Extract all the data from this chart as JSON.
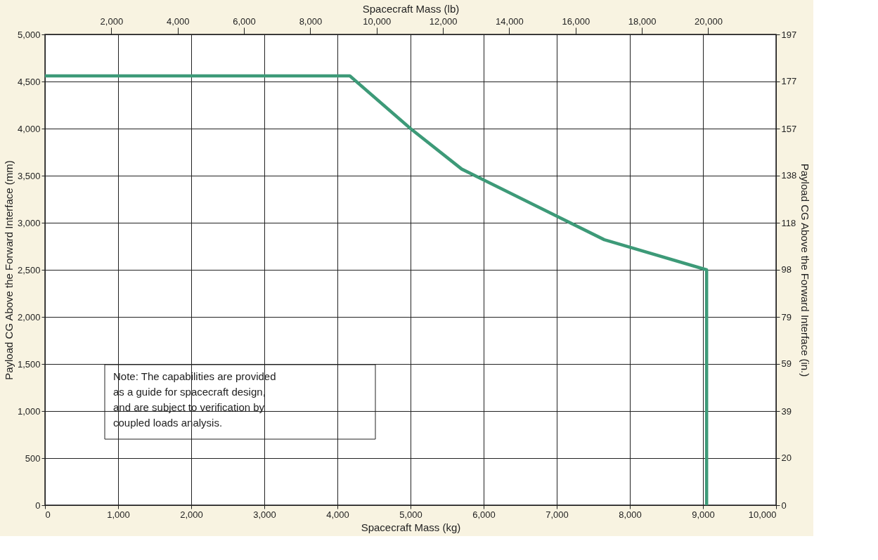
{
  "chart_data": {
    "type": "line",
    "xlabel": "Spacecraft Mass (kg)",
    "ylabel": "Payload CG Above the Forward Interface (mm)",
    "y2label": "Payload CG Above the Forward Interface (in.)",
    "x2label": "Spacecraft Mass (lb)",
    "series": [
      {
        "color": "#3d9a78",
        "x": [
          0,
          4170,
          5000,
          5700,
          7650,
          9050,
          9050
        ],
        "values": [
          4560,
          4560,
          4000,
          3570,
          2820,
          2500,
          0
        ]
      }
    ],
    "xlim": [
      0,
      10000
    ],
    "xticks": [
      0,
      {
        "value": 1000,
        "label": "1,000"
      },
      {
        "value": 2000,
        "label": "2,000"
      },
      {
        "value": 3000,
        "label": "3,000"
      },
      {
        "value": 4000,
        "label": "4,000"
      },
      {
        "value": 5000,
        "label": "5,000"
      },
      {
        "value": 6000,
        "label": "6,000"
      },
      {
        "value": 7000,
        "label": "7,000"
      },
      {
        "value": 8000,
        "label": "8,000"
      },
      {
        "value": 9000,
        "label": "9,000"
      },
      {
        "value": 10000,
        "label": "10,000"
      }
    ],
    "ylim": [
      0,
      5000
    ],
    "yticks": [
      0,
      500,
      {
        "value": 1000,
        "label": "1,000"
      },
      {
        "value": 1500,
        "label": "1,500"
      },
      {
        "value": 2000,
        "label": "2,000"
      },
      {
        "value": 2500,
        "label": "2,500"
      },
      {
        "value": 3000,
        "label": "3,000"
      },
      {
        "value": 3500,
        "label": "3,500"
      },
      {
        "value": 4000,
        "label": "4,000"
      },
      {
        "value": 4500,
        "label": "4,500"
      },
      {
        "value": 5000,
        "label": "5,000"
      }
    ],
    "x2lim": [
      0,
      22046
    ],
    "x2ticks": [
      {
        "value": 2000,
        "label": "2,000"
      },
      {
        "value": 4000,
        "label": "4,000"
      },
      {
        "value": 6000,
        "label": "6,000"
      },
      {
        "value": 8000,
        "label": "8,000"
      },
      {
        "value": 10000,
        "label": "10,000"
      },
      {
        "value": 12000,
        "label": "12,000"
      },
      {
        "value": 14000,
        "label": "14,000"
      },
      {
        "value": 16000,
        "label": "16,000"
      },
      {
        "value": 18000,
        "label": "18,000"
      },
      {
        "value": 20000,
        "label": "20,000"
      }
    ],
    "y2lim": [
      0,
      196.85
    ],
    "y2ticks": [
      0,
      {
        "value": 19.69,
        "label": "20"
      },
      {
        "value": 39.37,
        "label": "39"
      },
      {
        "value": 59.06,
        "label": "59"
      },
      {
        "value": 78.74,
        "label": "79"
      },
      {
        "value": 98.43,
        "label": "98"
      },
      {
        "value": 118.11,
        "label": "118"
      },
      {
        "value": 137.8,
        "label": "138"
      },
      {
        "value": 157.48,
        "label": "157"
      },
      {
        "value": 177.17,
        "label": "177"
      },
      {
        "value": 196.85,
        "label": "197"
      }
    ],
    "annotations": [
      "Note: The capabilities are provided\nas a guide for spacecraft design,\nand are subject to verification by\ncoupled loads analysis."
    ],
    "grid": true,
    "marker": "none",
    "line_style": "solid"
  }
}
